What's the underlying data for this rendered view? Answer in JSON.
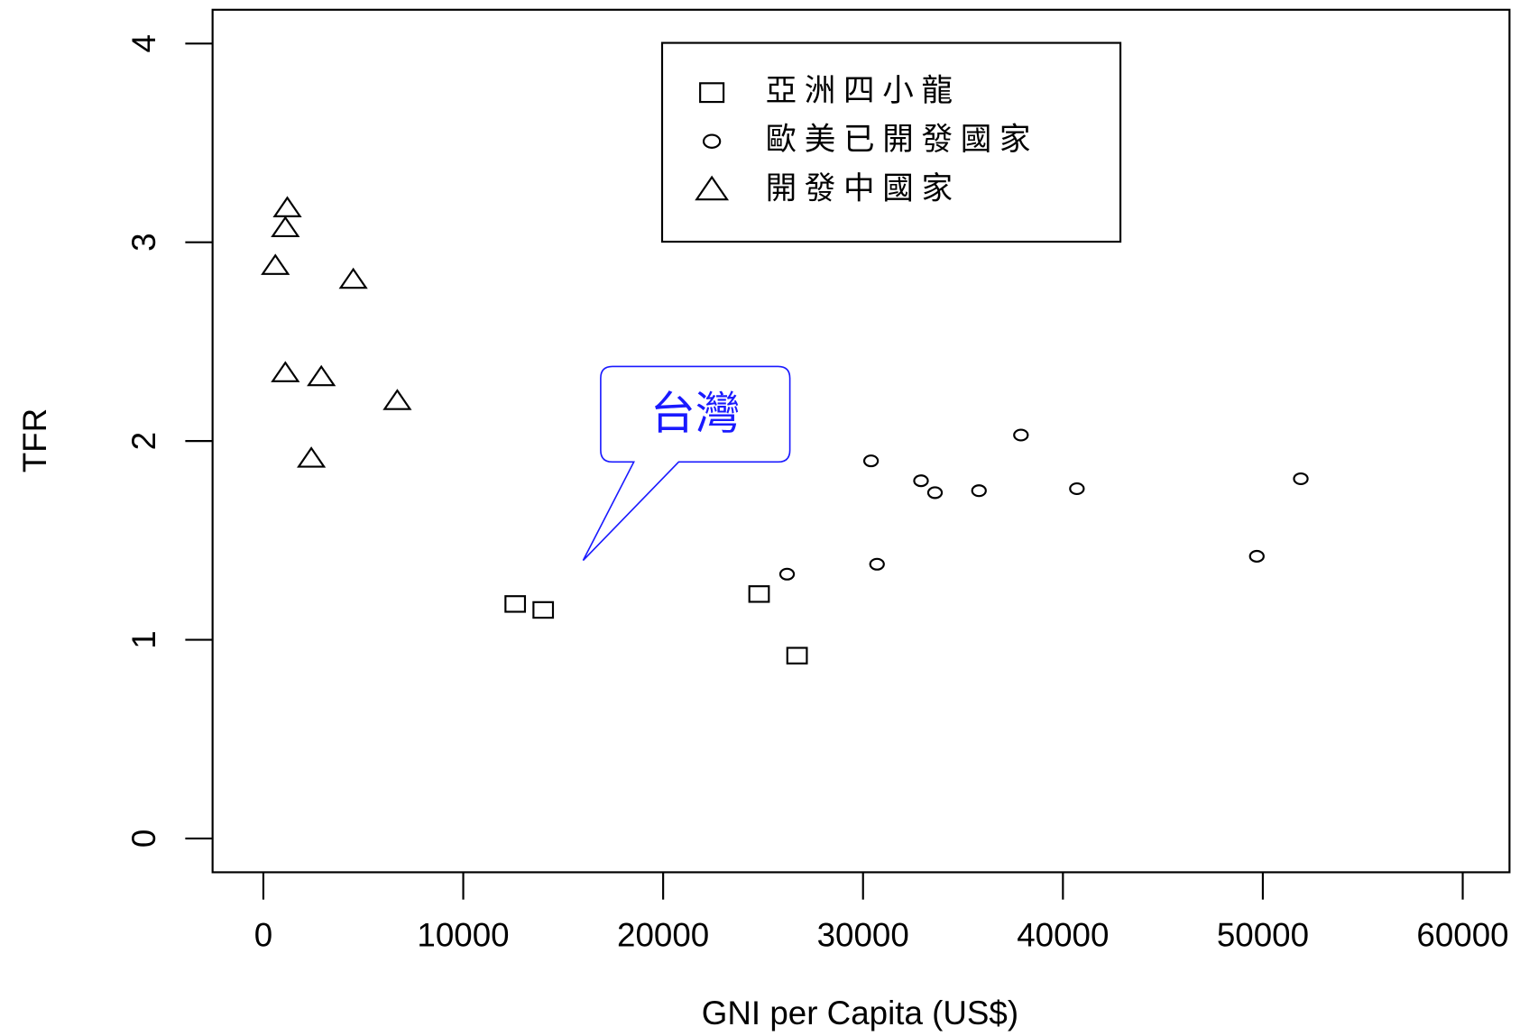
{
  "chart_data": {
    "type": "scatter",
    "xlabel": "GNI per Capita (US$)",
    "ylabel": "TFR",
    "xlim": [
      -2540,
      62340
    ],
    "ylim": [
      -0.17,
      4.17
    ],
    "xticks": [
      0,
      10000,
      20000,
      30000,
      40000,
      50000,
      60000
    ],
    "yticks": [
      0,
      1,
      2,
      3,
      4
    ],
    "annotation": "台灣",
    "series": [
      {
        "name": "亞洲四小龍",
        "marker": "square",
        "color": "#000000",
        "x": [
          12600,
          14000,
          24800,
          26700
        ],
        "values": [
          1.18,
          1.15,
          1.23,
          0.92
        ]
      },
      {
        "name": "歐美已開發國家",
        "marker": "circle",
        "color": "#000000",
        "x": [
          30400,
          32900,
          33600,
          35800,
          37900,
          40700,
          26200,
          30700,
          49700,
          51900
        ],
        "values": [
          1.9,
          1.8,
          1.74,
          1.75,
          2.03,
          1.76,
          1.33,
          1.38,
          1.42,
          1.81
        ]
      },
      {
        "name": "開發中國家",
        "marker": "triangle",
        "color": "#000000",
        "x": [
          1200,
          1100,
          600,
          4500,
          1100,
          2900,
          6700,
          2400
        ],
        "values": [
          3.17,
          3.07,
          2.88,
          2.81,
          2.34,
          2.32,
          2.2,
          1.91
        ]
      }
    ]
  }
}
